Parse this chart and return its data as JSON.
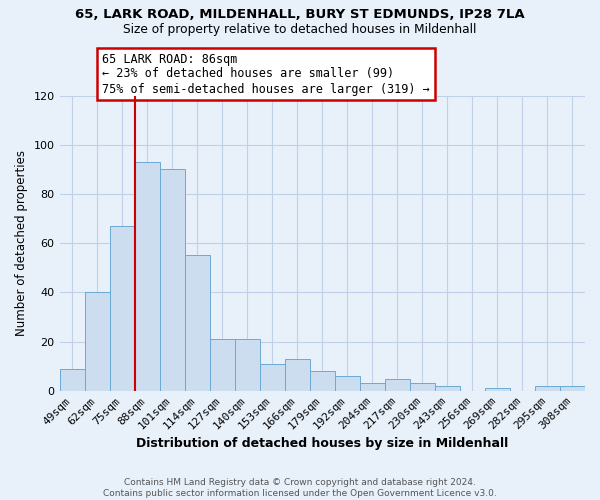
{
  "title": "65, LARK ROAD, MILDENHALL, BURY ST EDMUNDS, IP28 7LA",
  "subtitle": "Size of property relative to detached houses in Mildenhall",
  "xlabel": "Distribution of detached houses by size in Mildenhall",
  "ylabel": "Number of detached properties",
  "footer_line1": "Contains HM Land Registry data © Crown copyright and database right 2024.",
  "footer_line2": "Contains public sector information licensed under the Open Government Licence v3.0.",
  "bar_labels": [
    "49sqm",
    "62sqm",
    "75sqm",
    "88sqm",
    "101sqm",
    "114sqm",
    "127sqm",
    "140sqm",
    "153sqm",
    "166sqm",
    "179sqm",
    "192sqm",
    "204sqm",
    "217sqm",
    "230sqm",
    "243sqm",
    "256sqm",
    "269sqm",
    "282sqm",
    "295sqm",
    "308sqm"
  ],
  "bar_values": [
    9,
    40,
    67,
    93,
    90,
    55,
    21,
    21,
    11,
    13,
    8,
    6,
    3,
    5,
    3,
    2,
    0,
    1,
    0,
    2,
    2
  ],
  "bar_color": "#ccddf0",
  "bar_edge_color": "#6aaad4",
  "grid_color": "#c0d0e8",
  "background_color": "#e8f0fa",
  "vline_x_index": 3,
  "vline_color": "#cc0000",
  "annotation_title": "65 LARK ROAD: 86sqm",
  "annotation_line1": "← 23% of detached houses are smaller (99)",
  "annotation_line2": "75% of semi-detached houses are larger (319) →",
  "annotation_box_color": "white",
  "annotation_box_edge": "#cc0000",
  "ylim": [
    0,
    120
  ],
  "yticks": [
    0,
    20,
    40,
    60,
    80,
    100,
    120
  ]
}
